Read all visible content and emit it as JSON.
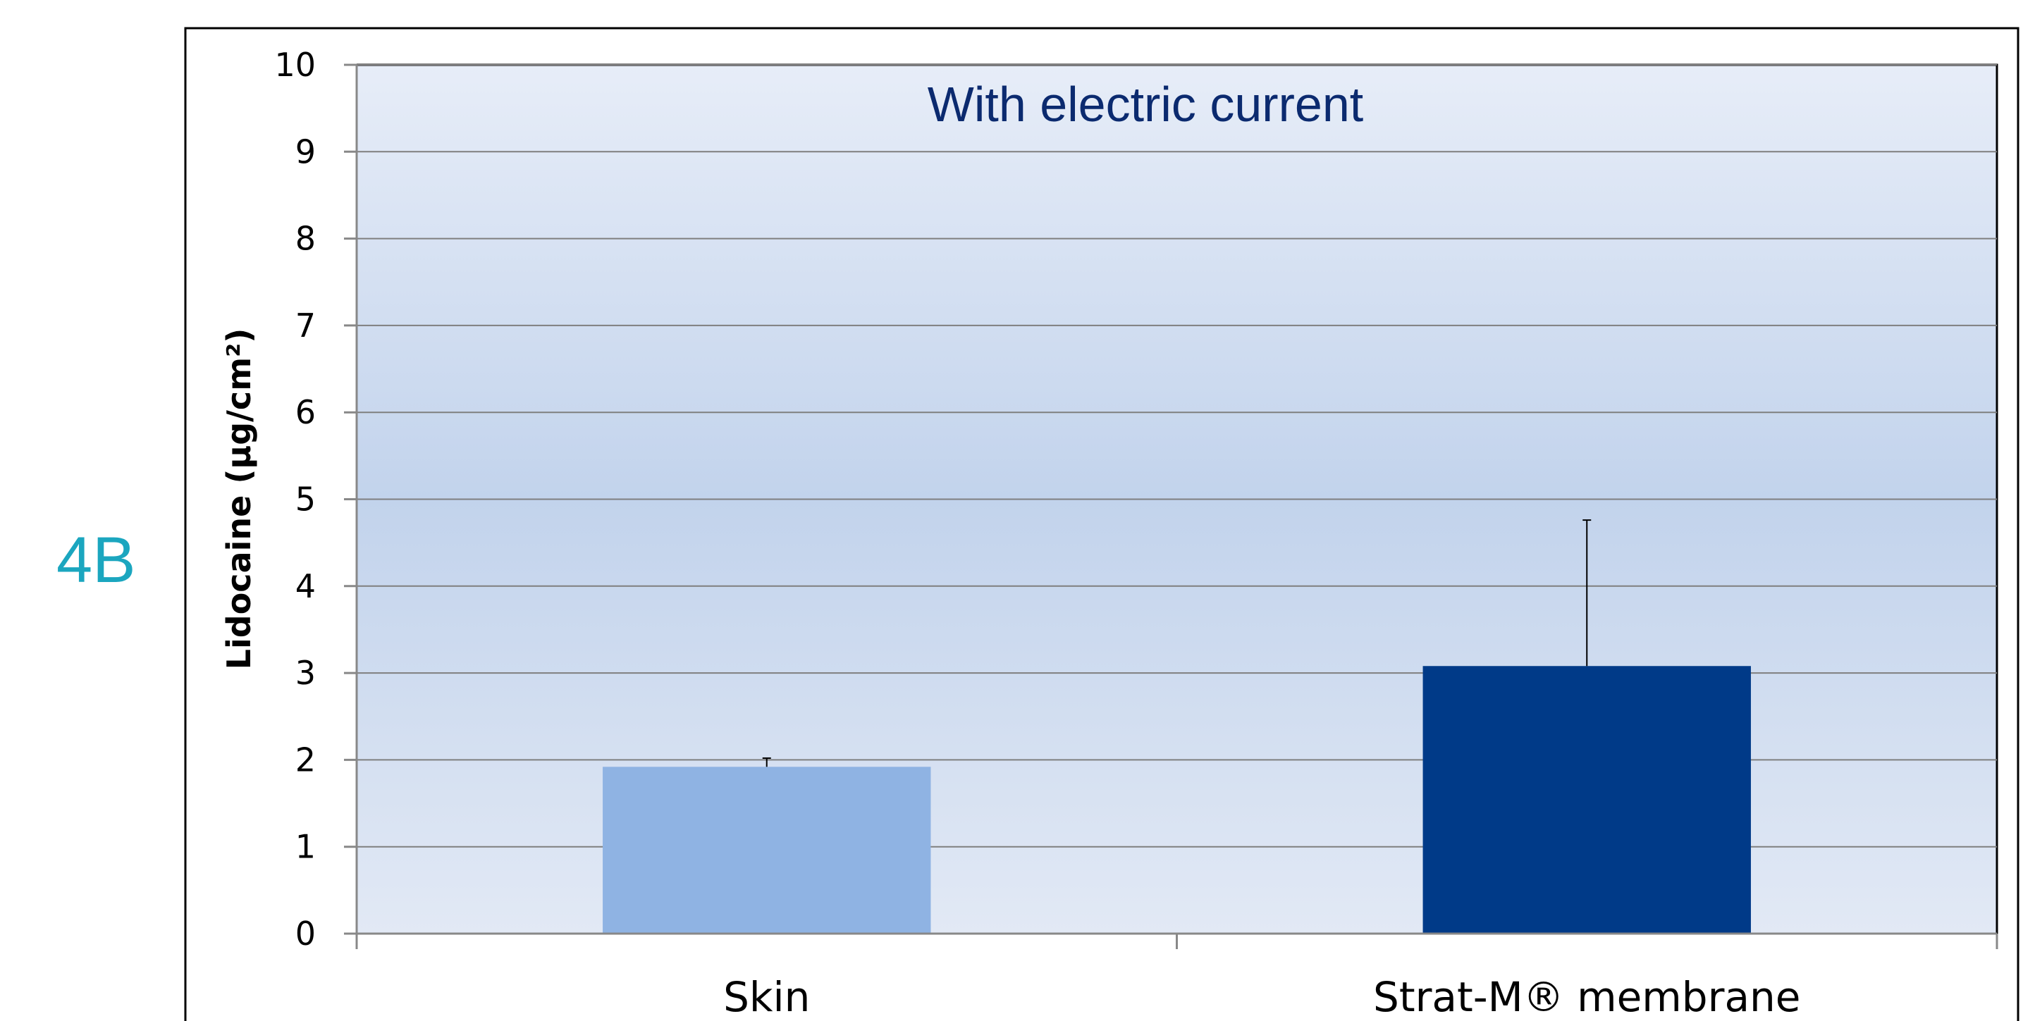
{
  "panel_label": "4B",
  "colors": {
    "skin_bar": "#8fb3e3",
    "strat_bar": "#003a88",
    "panel_label": "#1ba6bf",
    "title": "#0b2a6f",
    "plot_gradient_top": "#e7edf8",
    "plot_gradient_mid": "#c2d3ec",
    "plot_gradient_bottom": "#e2e9f5",
    "gridline": "#7f7f7f"
  },
  "chart_data": {
    "type": "bar",
    "title": "With electric current",
    "xlabel": "",
    "ylabel": "Lidocaine (µg/cm²)",
    "categories": [
      "Skin",
      "Strat-M® membrane"
    ],
    "values": [
      1.92,
      3.08
    ],
    "error_upper": [
      0.1,
      1.68
    ],
    "ylim": [
      0,
      10
    ],
    "yticks": [
      0,
      1,
      2,
      3,
      4,
      5,
      6,
      7,
      8,
      9,
      10
    ],
    "grid": true,
    "legend": "none"
  }
}
